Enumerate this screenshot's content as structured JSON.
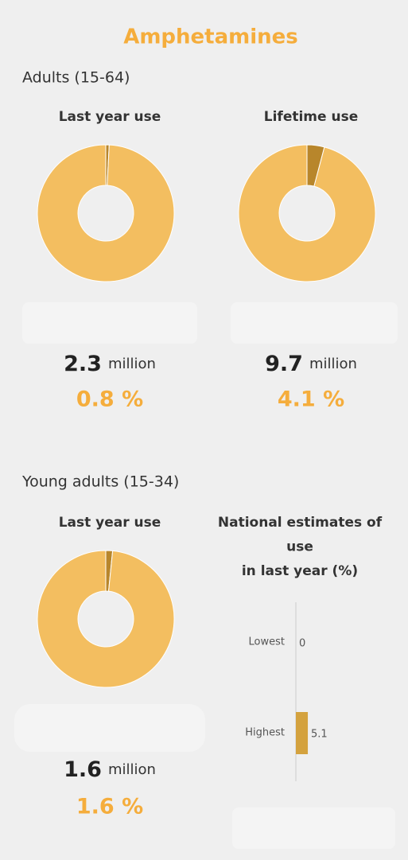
{
  "title": "Amphetamines",
  "sections": [
    {
      "heading": "Adults (15-64)"
    },
    {
      "heading": "Young adults (15-34)"
    }
  ],
  "chart_data": [
    {
      "type": "pie",
      "title": "Last year use",
      "categories": [
        null,
        null
      ],
      "values": [
        0.8,
        99.2
      ],
      "value_labels": [
        "0.8 %",
        null
      ],
      "colors": [
        "#b8862b",
        "#f3be60"
      ],
      "count": 2.3,
      "count_unit": "million"
    },
    {
      "type": "pie",
      "title": "Lifetime use",
      "categories": [
        null,
        null
      ],
      "values": [
        4.1,
        95.9
      ],
      "value_labels": [
        "4.1 %",
        null
      ],
      "colors": [
        "#b8862b",
        "#f3be60"
      ],
      "count": 9.7,
      "count_unit": "million"
    },
    {
      "type": "pie",
      "title": "Last year use",
      "categories": [
        null,
        null
      ],
      "values": [
        1.6,
        98.4
      ],
      "value_labels": [
        "1.6 %",
        null
      ],
      "colors": [
        "#b8862b",
        "#f3be60"
      ],
      "count": 1.6,
      "count_unit": "million"
    },
    {
      "type": "bar",
      "orientation": "horizontal",
      "title": [
        "National estimates of",
        "use",
        "in last year (%)"
      ],
      "categories": [
        "Lowest",
        "Highest"
      ],
      "values": [
        0,
        5.1
      ],
      "color": "#d4a23e",
      "xlim": [
        0,
        40
      ]
    }
  ]
}
